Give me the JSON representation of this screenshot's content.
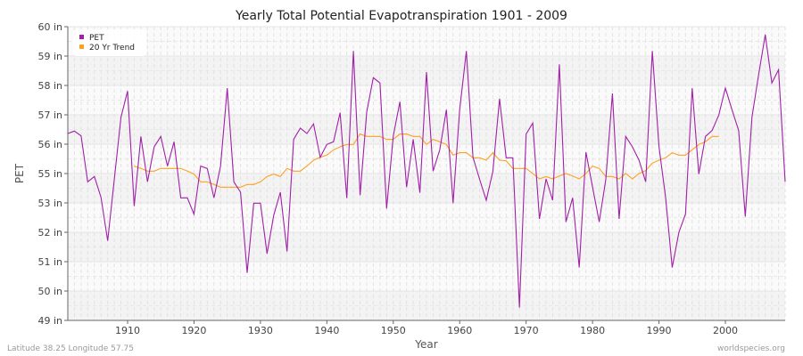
{
  "chart_data": {
    "type": "line",
    "title": "Yearly Total Potential Evapotranspiration 1901 - 2009",
    "xlabel": "Year",
    "ylabel": "PET",
    "xlim": [
      1901,
      2009
    ],
    "ylim": [
      49,
      60
    ],
    "yticks": [
      {
        "v": 60,
        "label": "60 in"
      },
      {
        "v": 58.9,
        "label": "59 in"
      },
      {
        "v": 57.8,
        "label": "58 in"
      },
      {
        "v": 56.7,
        "label": "57 in"
      },
      {
        "v": 55.6,
        "label": "56 in"
      },
      {
        "v": 54.5,
        "label": "55 in"
      },
      {
        "v": 53.4,
        "label": "53 in"
      },
      {
        "v": 52.3,
        "label": "52 in"
      },
      {
        "v": 51.2,
        "label": "51 in"
      },
      {
        "v": 50.1,
        "label": "50 in"
      },
      {
        "v": 49,
        "label": "49 in"
      }
    ],
    "xticks": [
      1910,
      1920,
      1930,
      1940,
      1950,
      1960,
      1970,
      1980,
      1990,
      2000
    ],
    "legend_position": "top-left",
    "series": [
      {
        "name": "PET",
        "color": "#a020a8",
        "start": 1901,
        "values": [
          56.0,
          56.09,
          55.91,
          54.19,
          54.39,
          53.61,
          51.98,
          54.28,
          56.61,
          57.59,
          53.28,
          55.89,
          54.19,
          55.5,
          55.89,
          54.78,
          55.69,
          53.59,
          53.59,
          52.98,
          54.78,
          54.69,
          53.59,
          54.78,
          57.7,
          54.19,
          53.8,
          50.78,
          53.39,
          53.39,
          51.5,
          52.94,
          53.8,
          51.58,
          55.78,
          56.2,
          56.0,
          56.36,
          55.11,
          55.59,
          55.69,
          56.78,
          53.58,
          59.09,
          53.69,
          56.8,
          58.09,
          57.89,
          53.19,
          55.91,
          57.19,
          53.99,
          55.78,
          53.78,
          58.3,
          54.59,
          55.39,
          56.89,
          53.39,
          56.89,
          59.09,
          55.11,
          54.28,
          53.5,
          54.58,
          57.3,
          55.09,
          55.09,
          49.48,
          55.98,
          56.39,
          52.8,
          54.3,
          53.5,
          58.59,
          52.69,
          53.59,
          50.98,
          55.3,
          54.0,
          52.69,
          54.28,
          57.5,
          52.8,
          55.89,
          55.5,
          55.0,
          54.19,
          59.09,
          55.5,
          53.61,
          50.98,
          52.3,
          52.98,
          57.7,
          54.48,
          55.89,
          56.11,
          56.69,
          57.7,
          56.89,
          56.11,
          52.89,
          56.61,
          58.19,
          59.7,
          57.89,
          58.39,
          54.19
        ]
      },
      {
        "name": "20 Yr Trend",
        "color": "#ffa020",
        "start": 1911,
        "values": [
          54.78,
          54.69,
          54.59,
          54.59,
          54.69,
          54.69,
          54.69,
          54.69,
          54.59,
          54.48,
          54.19,
          54.19,
          54.09,
          53.99,
          53.99,
          53.99,
          53.99,
          54.09,
          54.09,
          54.19,
          54.39,
          54.48,
          54.39,
          54.69,
          54.59,
          54.59,
          54.78,
          55.0,
          55.11,
          55.19,
          55.39,
          55.5,
          55.59,
          55.59,
          55.98,
          55.89,
          55.89,
          55.89,
          55.78,
          55.78,
          55.98,
          55.98,
          55.89,
          55.89,
          55.59,
          55.78,
          55.69,
          55.59,
          55.19,
          55.28,
          55.28,
          55.09,
          55.09,
          55.0,
          55.28,
          55.0,
          54.98,
          54.69,
          54.69,
          54.69,
          54.5,
          54.3,
          54.39,
          54.3,
          54.41,
          54.5,
          54.41,
          54.3,
          54.5,
          54.78,
          54.69,
          54.39,
          54.39,
          54.3,
          54.5,
          54.3,
          54.5,
          54.61,
          54.89,
          55.0,
          55.09,
          55.28,
          55.19,
          55.19,
          55.39,
          55.59,
          55.69,
          55.89,
          55.89
        ]
      }
    ]
  },
  "footer": {
    "left": "Latitude 38.25 Longitude 57.75",
    "right": "worldspecies.org"
  }
}
